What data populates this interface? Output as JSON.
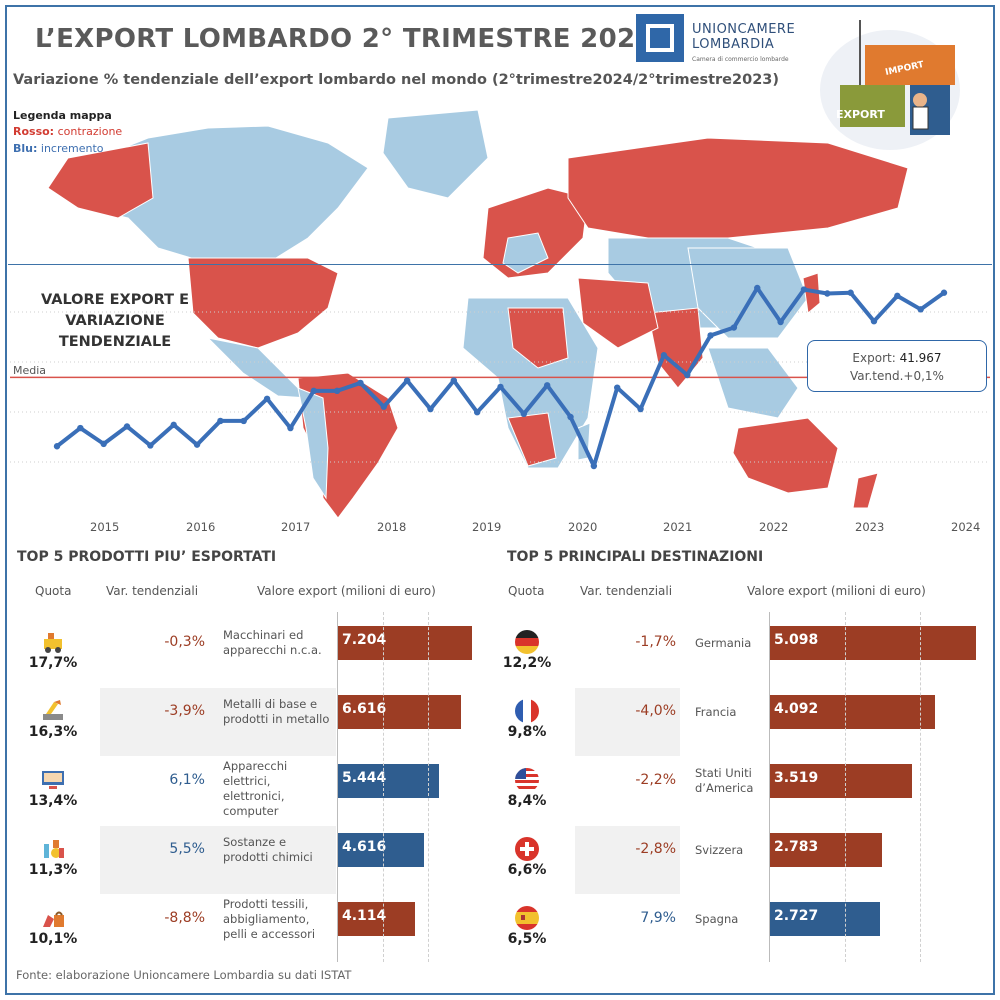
{
  "header": {
    "title": "L’EXPORT LOMBARDO 2° TRIMESTRE 2024",
    "subtitle": "Variazione % tendenziale dell’export lombardo nel mondo (2°trimestre2024/2°trimestre2023)",
    "logo_line1": "UNIONCAMERE",
    "logo_line2": "LOMBARDIA",
    "logo_tagline": "Camera di commercio lombarde",
    "illustration_import": "IMPORT",
    "illustration_export": "EXPORT"
  },
  "legend": {
    "title": "Legenda mappa",
    "red_label": "Rosso:",
    "red_text": "contrazione",
    "blue_label": "Blu:",
    "blue_text": "incremento",
    "red_color": "#d9534b",
    "blue_color": "#a8cbe2"
  },
  "line_section": {
    "label_line1": "VALORE EXPORT E",
    "label_line2": "VARIAZIONE",
    "label_line3": "TENDENZIALE",
    "media_label": "Media",
    "tooltip_export_label": "Export:",
    "tooltip_export_value": "41.967",
    "tooltip_var": "Var.tend.+0,1%"
  },
  "chart_data": [
    {
      "type": "line",
      "x_ticks": [
        "2015",
        "2016",
        "2017",
        "2018",
        "2019",
        "2020",
        "2021",
        "2022",
        "2023",
        "2024"
      ],
      "series": [
        {
          "values": [
            -3.5,
            -1.2,
            -3.2,
            -1.0,
            -3.4,
            -0.8,
            -3.3,
            -0.3,
            -0.3,
            2.5,
            -1.2,
            3.5,
            3.5,
            4.5,
            1.5,
            4.8,
            1.2,
            4.8,
            0.8,
            4.0,
            0.6,
            4.2,
            0.2,
            -6.0,
            3.9,
            1.2,
            8.0,
            5.5,
            10.5,
            11.5,
            16.5,
            12.2,
            16.3,
            15.8,
            15.9,
            12.3,
            15.5,
            13.8,
            15.9
          ]
        }
      ],
      "mean_line": 5.2,
      "color": "#3a6fb8"
    },
    {
      "type": "bar",
      "title": "TOP 5 PRODOTTI PIU’ ESPORTATI",
      "categories": [
        "Macchinari ed apparecchi n.c.a.",
        "Metalli di base e prodotti in metallo",
        "Apparecchi elettrici, elettronici, computer",
        "Sostanze e prodotti chimici",
        "Prodotti tessili, abbigliamento, pelli e accessori"
      ],
      "values": [
        7204,
        6616,
        5444,
        4616,
        4114
      ],
      "value_labels": [
        "7.204",
        "6.616",
        "5.444",
        "4.616",
        "4.114"
      ],
      "quota": [
        "17,7%",
        "16,3%",
        "13,4%",
        "11,3%",
        "10,1%"
      ],
      "var_tendenziali": [
        "-0,3%",
        "-3,9%",
        "6,1%",
        "5,5%",
        "-8,8%"
      ],
      "var_sign": [
        "neg",
        "neg",
        "pos",
        "pos",
        "neg"
      ]
    },
    {
      "type": "bar",
      "title": "TOP 5 PRINCIPALI DESTINAZIONI",
      "categories": [
        "Germania",
        "Francia",
        "Stati Uniti d’America",
        "Svizzera",
        "Spagna"
      ],
      "values": [
        5098,
        4092,
        3519,
        2783,
        2727
      ],
      "value_labels": [
        "5.098",
        "4.092",
        "3.519",
        "2.783",
        "2.727"
      ],
      "quota": [
        "12,2%",
        "9,8%",
        "8,4%",
        "6,6%",
        "6,5%"
      ],
      "var_tendenziali": [
        "-1,7%",
        "-4,0%",
        "-2,2%",
        "-2,8%",
        "7,9%"
      ],
      "var_sign": [
        "neg",
        "neg",
        "neg",
        "neg",
        "pos"
      ]
    }
  ],
  "tables": {
    "col_quota": "Quota",
    "col_var": "Var. tendenziali",
    "col_valore": "Valore export (milioni di euro)",
    "product_icons": [
      "machinery-icon",
      "metal-icon",
      "computer-icon",
      "chemicals-icon",
      "textile-icon"
    ],
    "country_icons": [
      "germany-flag-icon",
      "france-flag-icon",
      "usa-flag-icon",
      "switzerland-flag-icon",
      "spain-flag-icon"
    ]
  },
  "footer": {
    "source": "Fonte: elaborazione Unioncamere Lombardia su dati ISTAT"
  }
}
